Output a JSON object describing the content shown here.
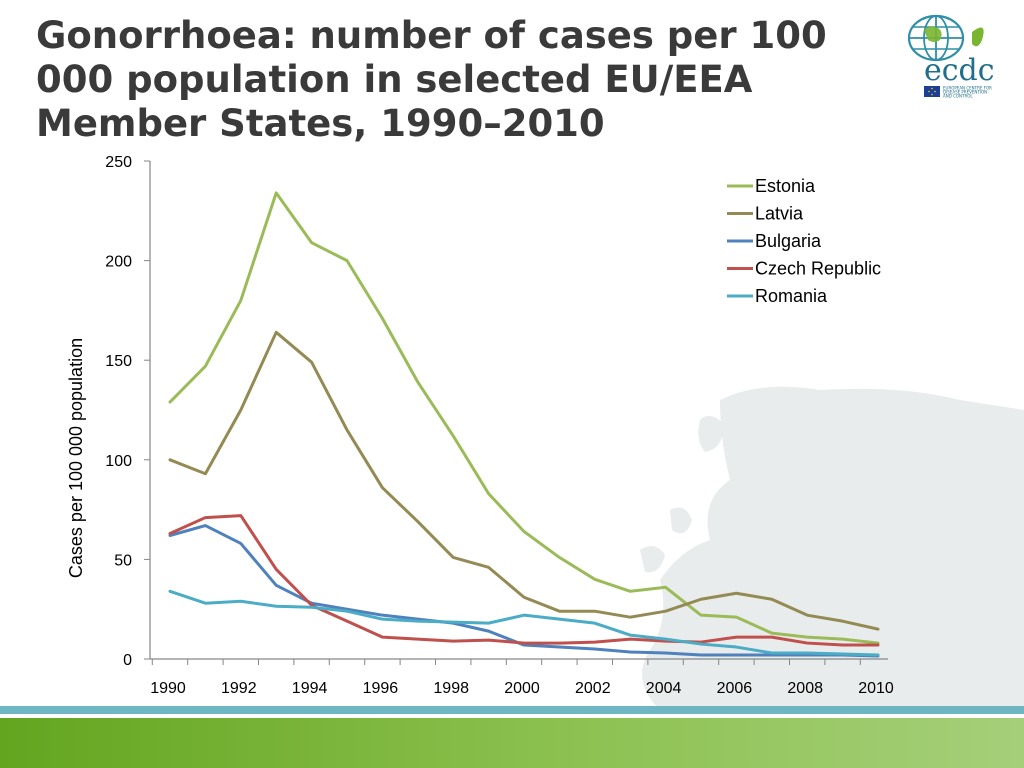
{
  "slide": {
    "title": "Gonorrhoea: number of cases per 100 000 population in selected EU/EEA Member States, 1990–2010"
  },
  "logo": {
    "wordmark": "ecdc",
    "subtitle_lines": [
      "EUROPEAN CENTRE FOR",
      "DISEASE PREVENTION",
      "AND CONTROL"
    ],
    "colors": {
      "globe": "#2e8fa6",
      "wordmark": "#1f6f8b",
      "leaf": "#7ab530",
      "flag": "#1b3f96"
    }
  },
  "chart_data": {
    "type": "line",
    "title": "",
    "xlabel": "",
    "ylabel": "Cases per 100 000 population",
    "x": [
      1990,
      1991,
      1992,
      1993,
      1994,
      1995,
      1996,
      1997,
      1998,
      1999,
      2000,
      2001,
      2002,
      2003,
      2004,
      2005,
      2006,
      2007,
      2008,
      2009,
      2010
    ],
    "x_tick_labels": [
      "1990",
      "1992",
      "1994",
      "1996",
      "1998",
      "2000",
      "2002",
      "2004",
      "2006",
      "2008",
      "2010"
    ],
    "y_tick_labels": [
      "0",
      "50",
      "100",
      "150",
      "200",
      "250"
    ],
    "xlim": [
      1990,
      2010
    ],
    "ylim": [
      0,
      250
    ],
    "grid": false,
    "legend_position": "top-right",
    "series": [
      {
        "name": "Estonia",
        "color": "#9bbb59",
        "values": [
          129,
          147,
          180,
          234,
          209,
          200,
          171,
          139,
          112,
          83,
          64,
          51,
          40,
          34,
          36,
          22,
          21,
          13,
          11,
          10,
          8
        ]
      },
      {
        "name": "Latvia",
        "color": "#948a54",
        "values": [
          100,
          93,
          125,
          164,
          149,
          115,
          86,
          69,
          51,
          46,
          31,
          24,
          24,
          21,
          24,
          30,
          33,
          30,
          22,
          19,
          15
        ]
      },
      {
        "name": "Bulgaria",
        "color": "#4f81bd",
        "values": [
          62,
          67,
          58,
          37,
          28,
          25,
          22,
          20,
          18,
          14,
          7,
          6,
          5,
          3.5,
          3,
          2,
          2,
          2,
          2,
          2,
          1.5
        ]
      },
      {
        "name": "Czech Republic",
        "color": "#c0504d",
        "values": [
          63,
          71,
          72,
          45,
          27,
          19,
          11,
          10,
          9,
          9.5,
          8,
          8,
          8.5,
          10,
          9,
          8.5,
          11,
          11,
          8,
          7,
          7
        ]
      },
      {
        "name": "Romania",
        "color": "#4bacc6",
        "values": [
          34,
          28,
          29,
          26.5,
          26,
          24,
          20,
          19,
          18.5,
          18,
          22,
          20,
          18,
          12,
          10,
          7.5,
          6,
          3,
          3,
          2.5,
          2
        ]
      }
    ]
  }
}
